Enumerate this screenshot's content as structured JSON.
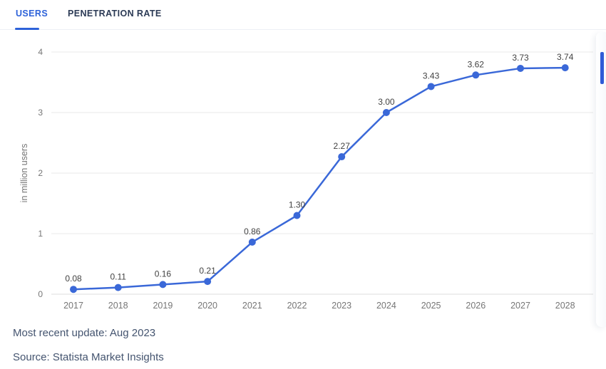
{
  "tabs": {
    "users": {
      "label": "USERS",
      "active": true
    },
    "penetration": {
      "label": "PENETRATION RATE",
      "active": false
    }
  },
  "chart_data": {
    "type": "line",
    "title": "",
    "x": [
      "2017",
      "2018",
      "2019",
      "2020",
      "2021",
      "2022",
      "2023",
      "2024",
      "2025",
      "2026",
      "2027",
      "2028"
    ],
    "series": [
      {
        "name": "Users",
        "values": [
          0.08,
          0.11,
          0.16,
          0.21,
          0.86,
          1.3,
          2.27,
          3.0,
          3.43,
          3.62,
          3.73,
          3.74
        ],
        "labels": [
          "0.08",
          "0.11",
          "0.16",
          "0.21",
          "0.86",
          "1.30",
          "2.27",
          "3.00",
          "3.43",
          "3.62",
          "3.73",
          "3.74"
        ]
      }
    ],
    "xlabel": "",
    "ylabel": "in million users",
    "ylim": [
      0,
      4
    ],
    "yticks": [
      0,
      1,
      2,
      3,
      4
    ],
    "grid": true,
    "legend_position": "none",
    "colors": {
      "line": "#3a68d8",
      "marker": "#3a68d8",
      "grid": "#e9e9e9",
      "zero_axis": "#dcdcdc",
      "tick_text": "#767676",
      "value_label": "#424242",
      "axis_title": "#767676"
    }
  },
  "footer": {
    "updated": "Most recent update: Aug 2023",
    "source": "Source: Statista Market Insights"
  },
  "scrollbar": {
    "color": "#2f5bd7"
  }
}
